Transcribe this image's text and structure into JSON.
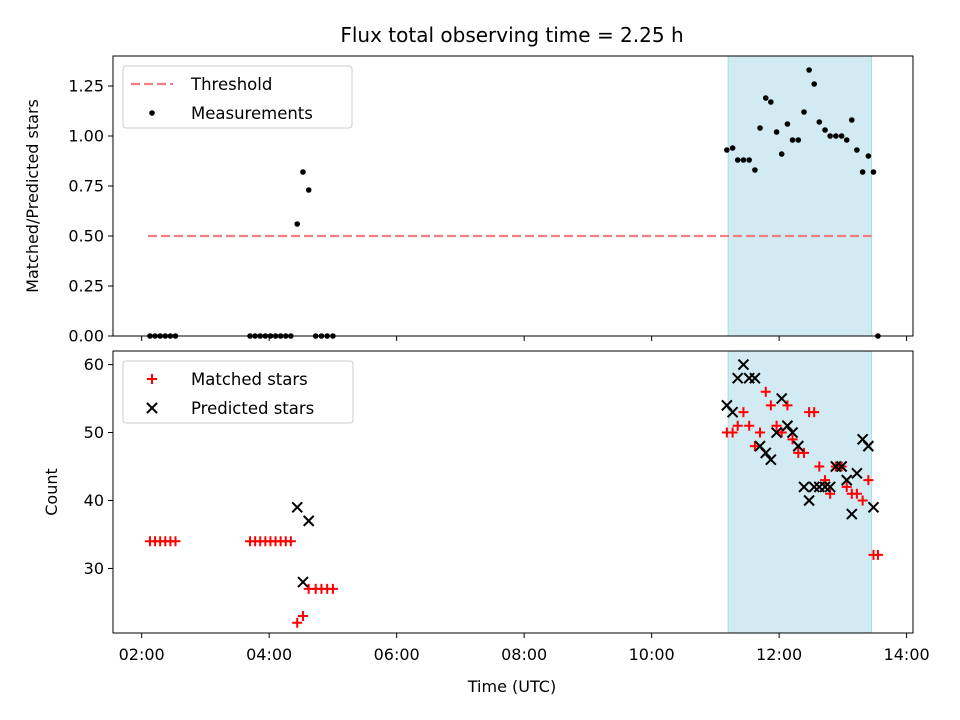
{
  "chart_data": {
    "type": "scatter",
    "title": "Flux total observing time = 2.25 h",
    "xlabel": "Time (UTC)",
    "x_ticks": [
      "02:00",
      "04:00",
      "06:00",
      "08:00",
      "10:00",
      "12:00",
      "14:00"
    ],
    "x_tick_hours": [
      2,
      4,
      6,
      8,
      10,
      12,
      14
    ],
    "xlim_hours": [
      1.55,
      14.1
    ],
    "highlight_span_hours": [
      11.2,
      13.45
    ],
    "colors": {
      "threshold": "#f08080",
      "measurements": "#000000",
      "matched": "#ff0000",
      "predicted": "#000000",
      "span_fill": "#add8e6"
    },
    "panels": [
      {
        "id": "ratio",
        "ylabel": "Matched/Predicted stars",
        "ylim": [
          0,
          1.4
        ],
        "y_ticks": [
          0.0,
          0.25,
          0.5,
          0.75,
          1.0,
          1.25
        ],
        "y_tick_labels": [
          "0.00",
          "0.25",
          "0.50",
          "0.75",
          "1.00",
          "1.25"
        ],
        "legend": [
          "Threshold",
          "Measurements"
        ],
        "threshold": {
          "value": 0.5,
          "x_hours": [
            2.1,
            13.45
          ]
        },
        "measurements": {
          "x_hours": [
            2.13,
            2.21,
            2.29,
            2.37,
            2.45,
            2.53,
            3.7,
            3.78,
            3.86,
            3.94,
            4.02,
            4.1,
            4.18,
            4.26,
            4.34,
            4.44,
            4.53,
            4.62,
            4.73,
            4.82,
            4.91,
            5.0,
            11.18,
            11.27,
            11.35,
            11.44,
            11.53,
            11.62,
            11.7,
            11.79,
            11.87,
            11.96,
            12.04,
            12.13,
            12.21,
            12.3,
            12.39,
            12.47,
            12.55,
            12.63,
            12.72,
            12.8,
            12.89,
            12.98,
            13.06,
            13.14,
            13.22,
            13.31,
            13.4,
            13.48,
            13.55
          ],
          "y": [
            0,
            0,
            0,
            0,
            0,
            0,
            0,
            0,
            0,
            0,
            0,
            0,
            0,
            0,
            0,
            0.56,
            0.82,
            0.73,
            0,
            0,
            0,
            0,
            0.93,
            0.94,
            0.88,
            0.88,
            0.88,
            0.83,
            1.04,
            1.19,
            1.17,
            1.02,
            0.91,
            1.06,
            0.98,
            0.98,
            1.12,
            1.33,
            1.26,
            1.07,
            1.03,
            1.0,
            1.0,
            1.0,
            0.98,
            1.08,
            0.93,
            0.82,
            0.9,
            0.82,
            0
          ]
        }
      },
      {
        "id": "count",
        "ylabel": "Count",
        "ylim": [
          20.5,
          62
        ],
        "y_ticks": [
          30,
          40,
          50,
          60
        ],
        "y_tick_labels": [
          "30",
          "40",
          "50",
          "60"
        ],
        "legend": [
          "Matched stars",
          "Predicted stars"
        ],
        "matched": {
          "x_hours": [
            2.13,
            2.21,
            2.29,
            2.37,
            2.45,
            2.53,
            3.7,
            3.78,
            3.86,
            3.94,
            4.02,
            4.1,
            4.18,
            4.26,
            4.34,
            4.44,
            4.53,
            4.62,
            4.73,
            4.82,
            4.91,
            5.0,
            11.18,
            11.27,
            11.35,
            11.44,
            11.53,
            11.62,
            11.7,
            11.79,
            11.87,
            11.96,
            12.04,
            12.13,
            12.21,
            12.3,
            12.39,
            12.47,
            12.55,
            12.63,
            12.72,
            12.8,
            12.89,
            12.98,
            13.06,
            13.14,
            13.22,
            13.31,
            13.4,
            13.48,
            13.55
          ],
          "y": [
            34,
            34,
            34,
            34,
            34,
            34,
            34,
            34,
            34,
            34,
            34,
            34,
            34,
            34,
            34,
            22,
            23,
            27,
            27,
            27,
            27,
            27,
            50,
            50,
            51,
            53,
            51,
            48,
            50,
            56,
            54,
            51,
            50,
            54,
            49,
            47,
            47,
            53,
            53,
            45,
            43,
            41,
            45,
            45,
            42,
            41,
            41,
            40,
            43,
            32,
            32
          ]
        },
        "predicted": {
          "x_hours": [
            4.44,
            4.53,
            4.62,
            11.18,
            11.27,
            11.35,
            11.44,
            11.53,
            11.62,
            11.7,
            11.79,
            11.87,
            11.96,
            12.04,
            12.13,
            12.21,
            12.3,
            12.39,
            12.47,
            12.55,
            12.63,
            12.72,
            12.8,
            12.89,
            12.98,
            13.06,
            13.14,
            13.22,
            13.31,
            13.4,
            13.48
          ],
          "y": [
            39,
            28,
            37,
            54,
            53,
            58,
            60,
            58,
            58,
            48,
            47,
            46,
            50,
            55,
            51,
            50,
            48,
            42,
            40,
            42,
            42,
            42,
            42,
            45,
            45,
            43,
            38,
            44,
            49,
            48,
            39
          ]
        }
      }
    ]
  }
}
